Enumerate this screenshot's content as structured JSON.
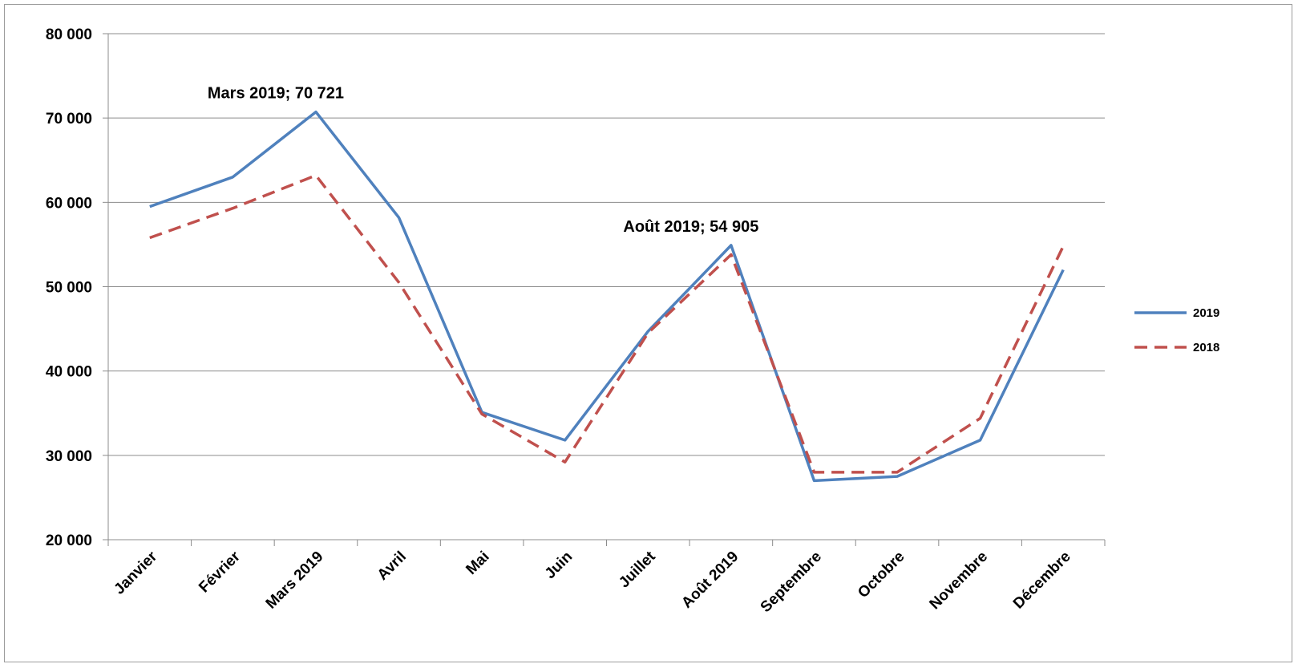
{
  "chart_data": {
    "type": "line",
    "categories": [
      "Janvier",
      "Février",
      "Mars 2019",
      "Avril",
      "Mai",
      "Juin",
      "Juillet",
      "Août 2019",
      "Septembre",
      "Octobre",
      "Novembre",
      "Décembre"
    ],
    "series": [
      {
        "name": "2019",
        "color": "#4f81bd",
        "dash": "solid",
        "values": [
          59500,
          63000,
          70721,
          58200,
          35100,
          31800,
          44700,
          54905,
          27000,
          27500,
          31800,
          52000
        ]
      },
      {
        "name": "2018",
        "color": "#c0504d",
        "dash": "dashed",
        "values": [
          55800,
          59300,
          63200,
          50500,
          34900,
          29200,
          44500,
          53800,
          28000,
          28000,
          34400,
          54800
        ]
      }
    ],
    "y_ticks": [
      "20 000",
      "30 000",
      "40 000",
      "50 000",
      "60 000",
      "70 000",
      "80 000"
    ],
    "ylim": [
      20000,
      80000
    ],
    "ytick_step": 10000,
    "grid": true,
    "legend_position": "right",
    "annotations": [
      {
        "text": "Mars 2019; 70 721",
        "category_index": 2,
        "series_index": 0
      },
      {
        "text": "Août 2019; 54 905",
        "category_index": 7,
        "series_index": 0
      }
    ]
  }
}
